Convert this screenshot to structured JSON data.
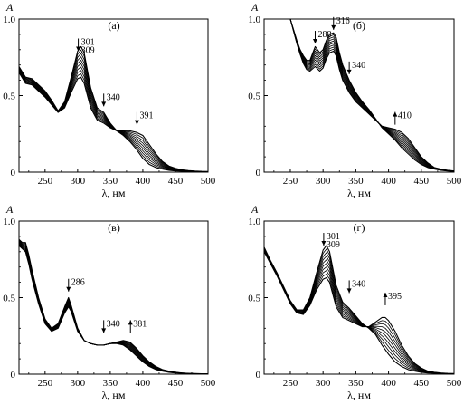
{
  "chart_data": [
    {
      "type": "line",
      "panel_label": "(а)",
      "ylabel": "A",
      "xlabel": "λ, нм",
      "xlim": [
        210,
        500
      ],
      "ylim": [
        0,
        1.0
      ],
      "xticks": [
        "250",
        "300",
        "350",
        "400",
        "450",
        "500"
      ],
      "yticks": [
        "0",
        "0.5",
        "1.0"
      ],
      "x": [
        210,
        220,
        230,
        240,
        250,
        260,
        270,
        280,
        290,
        300,
        305,
        310,
        320,
        330,
        340,
        350,
        360,
        370,
        380,
        390,
        400,
        410,
        420,
        430,
        440,
        450,
        460,
        470,
        480,
        490,
        500
      ],
      "series_start": {
        "values": [
          0.69,
          0.62,
          0.61,
          0.57,
          0.53,
          0.47,
          0.4,
          0.46,
          0.62,
          0.79,
          0.82,
          0.78,
          0.55,
          0.42,
          0.39,
          0.32,
          0.27,
          0.24,
          0.2,
          0.15,
          0.09,
          0.05,
          0.03,
          0.02,
          0.012,
          0.008,
          0.006,
          0.005,
          0.004,
          0.003,
          0.003
        ]
      },
      "series_end": {
        "values": [
          0.65,
          0.58,
          0.57,
          0.53,
          0.49,
          0.44,
          0.39,
          0.42,
          0.52,
          0.61,
          0.62,
          0.58,
          0.42,
          0.34,
          0.32,
          0.29,
          0.27,
          0.27,
          0.27,
          0.26,
          0.24,
          0.18,
          0.12,
          0.07,
          0.04,
          0.025,
          0.015,
          0.01,
          0.007,
          0.005,
          0.004
        ]
      },
      "n_curves": 10,
      "annotations": [
        {
          "text": "301",
          "x": 301,
          "y": 0.79,
          "dir": "down"
        },
        {
          "text": "309",
          "x": 301,
          "y": 0.79,
          "dir": "none",
          "line": 2
        },
        {
          "text": "340",
          "x": 340,
          "y": 0.43,
          "dir": "down"
        },
        {
          "text": "391",
          "x": 391,
          "y": 0.31,
          "dir": "down"
        }
      ]
    },
    {
      "type": "line",
      "panel_label": "(б)",
      "ylabel": "A",
      "xlabel": "λ, нм",
      "xlim": [
        210,
        500
      ],
      "ylim": [
        0,
        1.0
      ],
      "xticks": [
        "250",
        "300",
        "350",
        "400",
        "450",
        "500"
      ],
      "yticks": [
        "0",
        "0.5",
        "1.0"
      ],
      "x": [
        250,
        255,
        260,
        265,
        270,
        275,
        280,
        288,
        295,
        300,
        305,
        310,
        316,
        320,
        325,
        330,
        340,
        350,
        360,
        370,
        380,
        390,
        400,
        410,
        420,
        430,
        440,
        450,
        460,
        470,
        480,
        490,
        500
      ],
      "series_start": {
        "values": [
          1.0,
          0.93,
          0.86,
          0.8,
          0.76,
          0.73,
          0.73,
          0.82,
          0.78,
          0.8,
          0.86,
          0.9,
          0.91,
          0.88,
          0.78,
          0.7,
          0.6,
          0.52,
          0.46,
          0.41,
          0.35,
          0.29,
          0.25,
          0.21,
          0.16,
          0.12,
          0.08,
          0.05,
          0.03,
          0.02,
          0.012,
          0.008,
          0.005
        ]
      },
      "series_end": {
        "values": [
          1.0,
          0.92,
          0.84,
          0.77,
          0.71,
          0.67,
          0.66,
          0.69,
          0.66,
          0.68,
          0.74,
          0.78,
          0.79,
          0.76,
          0.67,
          0.6,
          0.52,
          0.46,
          0.42,
          0.38,
          0.34,
          0.3,
          0.29,
          0.28,
          0.26,
          0.22,
          0.16,
          0.1,
          0.06,
          0.03,
          0.02,
          0.012,
          0.008
        ]
      },
      "n_curves": 10,
      "annotations": [
        {
          "text": "288",
          "x": 288,
          "y": 0.84,
          "dir": "down"
        },
        {
          "text": "316",
          "x": 316,
          "y": 0.93,
          "dir": "down"
        },
        {
          "text": "340",
          "x": 340,
          "y": 0.64,
          "dir": "down"
        },
        {
          "text": "410",
          "x": 410,
          "y": 0.31,
          "dir": "up"
        }
      ]
    },
    {
      "type": "line",
      "panel_label": "(в)",
      "ylabel": "A",
      "xlabel": "λ, нм",
      "xlim": [
        210,
        500
      ],
      "ylim": [
        0,
        1.0
      ],
      "xticks": [
        "250",
        "300",
        "350",
        "400",
        "450",
        "500"
      ],
      "yticks": [
        "0",
        "0.5",
        "1.0"
      ],
      "x": [
        210,
        215,
        220,
        225,
        230,
        240,
        250,
        260,
        270,
        280,
        286,
        290,
        300,
        310,
        320,
        330,
        340,
        350,
        360,
        370,
        380,
        390,
        400,
        410,
        420,
        430,
        440,
        450,
        460,
        470,
        480,
        490,
        500
      ],
      "series_start": {
        "values": [
          0.88,
          0.86,
          0.86,
          0.78,
          0.68,
          0.5,
          0.36,
          0.3,
          0.33,
          0.44,
          0.5,
          0.45,
          0.3,
          0.22,
          0.2,
          0.19,
          0.19,
          0.2,
          0.2,
          0.19,
          0.16,
          0.12,
          0.08,
          0.05,
          0.03,
          0.02,
          0.012,
          0.008,
          0.006,
          0.004,
          0.003,
          0.003,
          0.002
        ]
      },
      "series_end": {
        "values": [
          0.84,
          0.82,
          0.8,
          0.72,
          0.62,
          0.46,
          0.33,
          0.28,
          0.3,
          0.4,
          0.44,
          0.41,
          0.28,
          0.22,
          0.2,
          0.19,
          0.19,
          0.2,
          0.21,
          0.22,
          0.21,
          0.17,
          0.12,
          0.08,
          0.05,
          0.03,
          0.02,
          0.012,
          0.008,
          0.005,
          0.004,
          0.003,
          0.002
        ]
      },
      "n_curves": 10,
      "annotations": [
        {
          "text": "286",
          "x": 286,
          "y": 0.54,
          "dir": "down"
        },
        {
          "text": "340",
          "x": 340,
          "y": 0.27,
          "dir": "down"
        },
        {
          "text": "381",
          "x": 381,
          "y": 0.27,
          "dir": "up"
        }
      ]
    },
    {
      "type": "line",
      "panel_label": "(г)",
      "ylabel": "A",
      "xlabel": "λ, нм",
      "xlim": [
        210,
        500
      ],
      "ylim": [
        0,
        1.0
      ],
      "xticks": [
        "250",
        "300",
        "350",
        "400",
        "450",
        "500"
      ],
      "yticks": [
        "0",
        "0.5",
        "1.0"
      ],
      "x": [
        210,
        220,
        230,
        240,
        250,
        260,
        270,
        280,
        290,
        300,
        305,
        310,
        320,
        330,
        340,
        350,
        360,
        370,
        380,
        390,
        395,
        400,
        410,
        420,
        430,
        440,
        450,
        460,
        470,
        480,
        490,
        500
      ],
      "series_start": {
        "values": [
          0.83,
          0.74,
          0.66,
          0.57,
          0.48,
          0.42,
          0.42,
          0.5,
          0.66,
          0.81,
          0.84,
          0.8,
          0.58,
          0.47,
          0.43,
          0.38,
          0.33,
          0.3,
          0.26,
          0.19,
          0.16,
          0.13,
          0.08,
          0.05,
          0.03,
          0.02,
          0.012,
          0.008,
          0.006,
          0.004,
          0.003,
          0.003
        ]
      },
      "series_end": {
        "values": [
          0.8,
          0.72,
          0.64,
          0.55,
          0.46,
          0.4,
          0.39,
          0.45,
          0.55,
          0.62,
          0.63,
          0.6,
          0.44,
          0.37,
          0.35,
          0.33,
          0.31,
          0.31,
          0.34,
          0.37,
          0.37,
          0.35,
          0.28,
          0.19,
          0.12,
          0.07,
          0.04,
          0.02,
          0.012,
          0.008,
          0.005,
          0.004
        ]
      },
      "n_curves": 10,
      "annotations": [
        {
          "text": "301",
          "x": 301,
          "y": 0.84,
          "dir": "down"
        },
        {
          "text": "309",
          "x": 301,
          "y": 0.84,
          "dir": "none",
          "line": 2
        },
        {
          "text": "340",
          "x": 340,
          "y": 0.53,
          "dir": "down"
        },
        {
          "text": "395",
          "x": 395,
          "y": 0.45,
          "dir": "up"
        }
      ]
    }
  ]
}
